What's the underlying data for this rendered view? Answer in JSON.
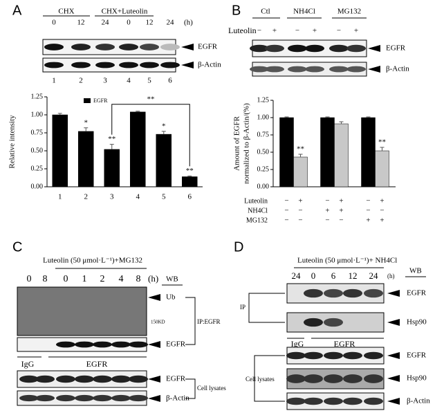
{
  "panel_A": {
    "label": "A",
    "groups": [
      "CHX",
      "CHX+Luteolin"
    ],
    "times": [
      "0",
      "12",
      "24",
      "0",
      "12",
      "24"
    ],
    "time_unit": "(h)",
    "bands": [
      "EGFR",
      "β-Actin"
    ],
    "lanes": [
      "1",
      "2",
      "3",
      "4",
      "5",
      "6"
    ]
  },
  "panel_B": {
    "label": "B",
    "groups": [
      "Ctl",
      "NH4Cl",
      "MG132"
    ],
    "treatment": "Luteolin",
    "treatment_marks": [
      "−",
      "+",
      "−",
      "+",
      "−",
      "+"
    ],
    "bands": [
      "EGFR",
      "β-Actin"
    ]
  },
  "panel_C": {
    "label": "C",
    "condition": "Luteolin (50 μmol·L⁻¹)+MG132",
    "times": [
      "0",
      "8",
      "0",
      "1",
      "2",
      "4",
      "8"
    ],
    "time_unit": "(h)",
    "wb": "WB",
    "bands": [
      "Ub",
      "EGFR",
      "EGFR",
      "β-Actin"
    ],
    "marker": "150KD",
    "ip": "IP:EGFR",
    "lysates": "Cell lysates",
    "antibodies": [
      "IgG",
      "EGFR"
    ]
  },
  "panel_D": {
    "label": "D",
    "condition": "Luteolin (50 μmol·L⁻¹)+ NH4Cl",
    "times": [
      "24",
      "0",
      "6",
      "12",
      "24"
    ],
    "time_unit": "(h)",
    "wb": "WB",
    "bands": [
      "EGFR",
      "Hsp90",
      "EGFR",
      "Hsp90",
      "β-Actin"
    ],
    "ip": "IP",
    "lysates": "Cell lysates",
    "antibodies": [
      "IgG",
      "EGFR"
    ]
  },
  "chart_data": [
    {
      "type": "bar",
      "y_label": "Relative intensity",
      "categories": [
        "1",
        "2",
        "3",
        "4",
        "5",
        "6"
      ],
      "legend": "upper left",
      "series": [
        {
          "name": "EGFR",
          "color": "#000000",
          "values": [
            1.0,
            0.77,
            0.52,
            1.04,
            0.73,
            0.14
          ],
          "errors": [
            0.02,
            0.05,
            0.07,
            0.01,
            0.04,
            0.01
          ],
          "significance": [
            null,
            "*",
            "**",
            null,
            "*",
            "**"
          ]
        }
      ],
      "ylim": [
        0,
        1.25
      ],
      "yticks": [
        {
          "value": 0,
          "label": "0.00"
        },
        {
          "value": 0.25,
          "label": "0.25"
        },
        {
          "value": 0.5,
          "label": "0.50"
        },
        {
          "value": 0.75,
          "label": "0.75"
        },
        {
          "value": 1,
          "label": "1.00"
        },
        {
          "value": 1.25,
          "label": "1.25"
        }
      ],
      "comparison": {
        "categories": [
          "3",
          "6"
        ],
        "label": "**"
      }
    },
    {
      "type": "bar",
      "y_label": [
        "Amount of EGFR",
        "normalized to β-Actin/(%)"
      ],
      "categories": [
        null,
        null,
        null
      ],
      "series": [
        {
          "color": "#000000",
          "values": [
            1.0,
            1.0,
            1.0
          ],
          "errors": [
            0.01,
            0.01,
            0.01
          ],
          "significance": [
            null,
            null,
            null
          ]
        },
        {
          "color": "#c8c8c8",
          "values": [
            0.43,
            0.91,
            0.52
          ],
          "errors": [
            0.04,
            0.03,
            0.05
          ],
          "significance": [
            "**",
            null,
            "**"
          ]
        }
      ],
      "ylim": [
        0,
        1.25
      ],
      "yticks": [
        {
          "value": 0,
          "label": "0.00"
        },
        {
          "value": 0.25,
          "label": "0.25"
        },
        {
          "value": 0.5,
          "label": "0.50"
        },
        {
          "value": 0.75,
          "label": "0.75"
        },
        {
          "value": 1,
          "label": "1.00"
        },
        {
          "value": 1.25,
          "label": "1.25"
        }
      ],
      "conditions": [
        {
          "name": "Luteolin",
          "marks": [
            "−",
            "+",
            "−",
            "+",
            "−",
            "+"
          ]
        },
        {
          "name": "NH4Cl",
          "marks": [
            "−",
            "−",
            "+",
            "+",
            "−",
            "−"
          ]
        },
        {
          "name": "MG132",
          "marks": [
            "−",
            "−",
            "−",
            "−",
            "+",
            "+"
          ]
        }
      ]
    }
  ]
}
